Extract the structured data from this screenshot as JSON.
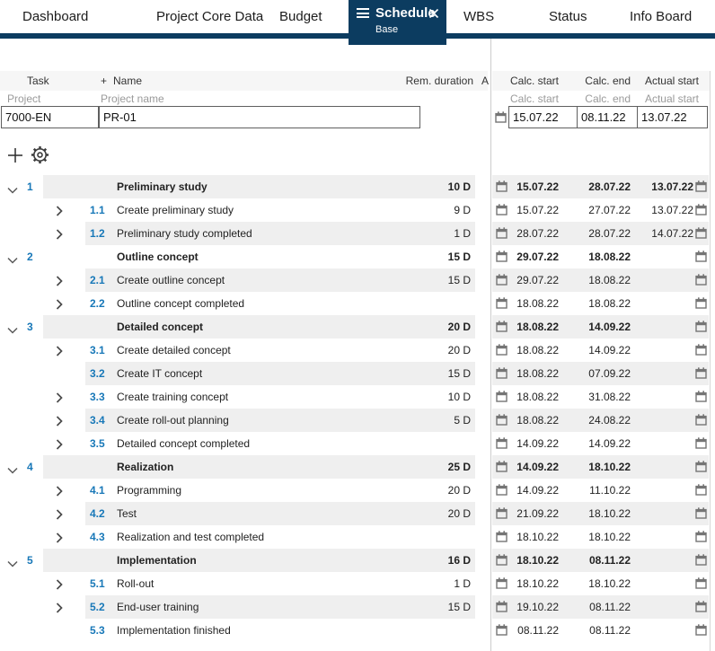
{
  "colors": {
    "accent_navy": "#0c3c60",
    "task_number_blue": "#1878b8",
    "stripe_grey": "#efefef",
    "header_grey": "#f6f6f6"
  },
  "tabs": [
    {
      "label": "Dashboard",
      "active": false
    },
    {
      "label": "Project Core Data",
      "active": false
    },
    {
      "label": "Budget",
      "active": false
    },
    {
      "label": "Schedule",
      "sublabel": "Base",
      "active": true
    },
    {
      "label": "WBS",
      "active": false
    },
    {
      "label": "Status",
      "active": false
    },
    {
      "label": "Info Board",
      "active": false
    }
  ],
  "table_header": {
    "task": "Task",
    "plus": "+",
    "name": "Name",
    "rem_duration": "Rem. duration",
    "a": "A",
    "calc_start": "Calc. start",
    "calc_end": "Calc. end",
    "actual_start": "Actual start"
  },
  "table_subheader": {
    "task": "Project",
    "name": "Project name",
    "calc_start": "Calc. start",
    "calc_end": "Calc. end",
    "actual_start": "Actual start"
  },
  "project": {
    "id": "7000-EN",
    "name": "PR-01",
    "calc_start": "15.07.22",
    "calc_end": "08.11.22",
    "actual_start": "13.07.22"
  },
  "rows": [
    {
      "num": "1",
      "level": 1,
      "chevron": "down",
      "emphasis": true,
      "name": "Preliminary study",
      "duration": "10 D",
      "calc_start": "15.07.22",
      "calc_end": "28.07.22",
      "actual_start": "13.07.22"
    },
    {
      "num": "1.1",
      "level": 2,
      "chevron": "right",
      "emphasis": false,
      "name": "Create preliminary study",
      "duration": "9 D",
      "calc_start": "15.07.22",
      "calc_end": "27.07.22",
      "actual_start": "13.07.22"
    },
    {
      "num": "1.2",
      "level": 2,
      "chevron": "right",
      "emphasis": false,
      "name": "Preliminary study completed",
      "duration": "1 D",
      "calc_start": "28.07.22",
      "calc_end": "28.07.22",
      "actual_start": "14.07.22"
    },
    {
      "num": "2",
      "level": 1,
      "chevron": "down",
      "emphasis": true,
      "name": "Outline concept",
      "duration": "15 D",
      "calc_start": "29.07.22",
      "calc_end": "18.08.22",
      "actual_start": ""
    },
    {
      "num": "2.1",
      "level": 2,
      "chevron": "right",
      "emphasis": false,
      "name": "Create outline concept",
      "duration": "15 D",
      "calc_start": "29.07.22",
      "calc_end": "18.08.22",
      "actual_start": ""
    },
    {
      "num": "2.2",
      "level": 2,
      "chevron": "right",
      "emphasis": false,
      "name": "Outline concept completed",
      "duration": "",
      "calc_start": "18.08.22",
      "calc_end": "18.08.22",
      "actual_start": ""
    },
    {
      "num": "3",
      "level": 1,
      "chevron": "down",
      "emphasis": true,
      "name": "Detailed concept",
      "duration": "20 D",
      "calc_start": "18.08.22",
      "calc_end": "14.09.22",
      "actual_start": ""
    },
    {
      "num": "3.1",
      "level": 2,
      "chevron": "right",
      "emphasis": false,
      "name": "Create detailed concept",
      "duration": "20 D",
      "calc_start": "18.08.22",
      "calc_end": "14.09.22",
      "actual_start": ""
    },
    {
      "num": "3.2",
      "level": 2,
      "chevron": "none",
      "emphasis": false,
      "name": "Create IT concept",
      "duration": "15 D",
      "calc_start": "18.08.22",
      "calc_end": "07.09.22",
      "actual_start": ""
    },
    {
      "num": "3.3",
      "level": 2,
      "chevron": "right",
      "emphasis": false,
      "name": "Create training concept",
      "duration": "10 D",
      "calc_start": "18.08.22",
      "calc_end": "31.08.22",
      "actual_start": ""
    },
    {
      "num": "3.4",
      "level": 2,
      "chevron": "right",
      "emphasis": false,
      "name": "Create roll-out planning",
      "duration": "5 D",
      "calc_start": "18.08.22",
      "calc_end": "24.08.22",
      "actual_start": ""
    },
    {
      "num": "3.5",
      "level": 2,
      "chevron": "right",
      "emphasis": false,
      "name": "Detailed concept completed",
      "duration": "",
      "calc_start": "14.09.22",
      "calc_end": "14.09.22",
      "actual_start": ""
    },
    {
      "num": "4",
      "level": 1,
      "chevron": "down",
      "emphasis": true,
      "name": "Realization",
      "duration": "25 D",
      "calc_start": "14.09.22",
      "calc_end": "18.10.22",
      "actual_start": ""
    },
    {
      "num": "4.1",
      "level": 2,
      "chevron": "right",
      "emphasis": false,
      "name": "Programming",
      "duration": "20 D",
      "calc_start": "14.09.22",
      "calc_end": "11.10.22",
      "actual_start": ""
    },
    {
      "num": "4.2",
      "level": 2,
      "chevron": "right",
      "emphasis": false,
      "name": "Test",
      "duration": "20 D",
      "calc_start": "21.09.22",
      "calc_end": "18.10.22",
      "actual_start": ""
    },
    {
      "num": "4.3",
      "level": 2,
      "chevron": "right",
      "emphasis": false,
      "name": "Realization and test completed",
      "duration": "",
      "calc_start": "18.10.22",
      "calc_end": "18.10.22",
      "actual_start": ""
    },
    {
      "num": "5",
      "level": 1,
      "chevron": "down",
      "emphasis": true,
      "name": "Implementation",
      "duration": "16 D",
      "calc_start": "18.10.22",
      "calc_end": "08.11.22",
      "actual_start": ""
    },
    {
      "num": "5.1",
      "level": 2,
      "chevron": "right",
      "emphasis": false,
      "name": "Roll-out",
      "duration": "1 D",
      "calc_start": "18.10.22",
      "calc_end": "18.10.22",
      "actual_start": ""
    },
    {
      "num": "5.2",
      "level": 2,
      "chevron": "right",
      "emphasis": false,
      "name": "End-user training",
      "duration": "15 D",
      "calc_start": "19.10.22",
      "calc_end": "08.11.22",
      "actual_start": ""
    },
    {
      "num": "5.3",
      "level": 2,
      "chevron": "none",
      "emphasis": false,
      "name": "Implementation finished",
      "duration": "",
      "calc_start": "08.11.22",
      "calc_end": "08.11.22",
      "actual_start": ""
    }
  ]
}
